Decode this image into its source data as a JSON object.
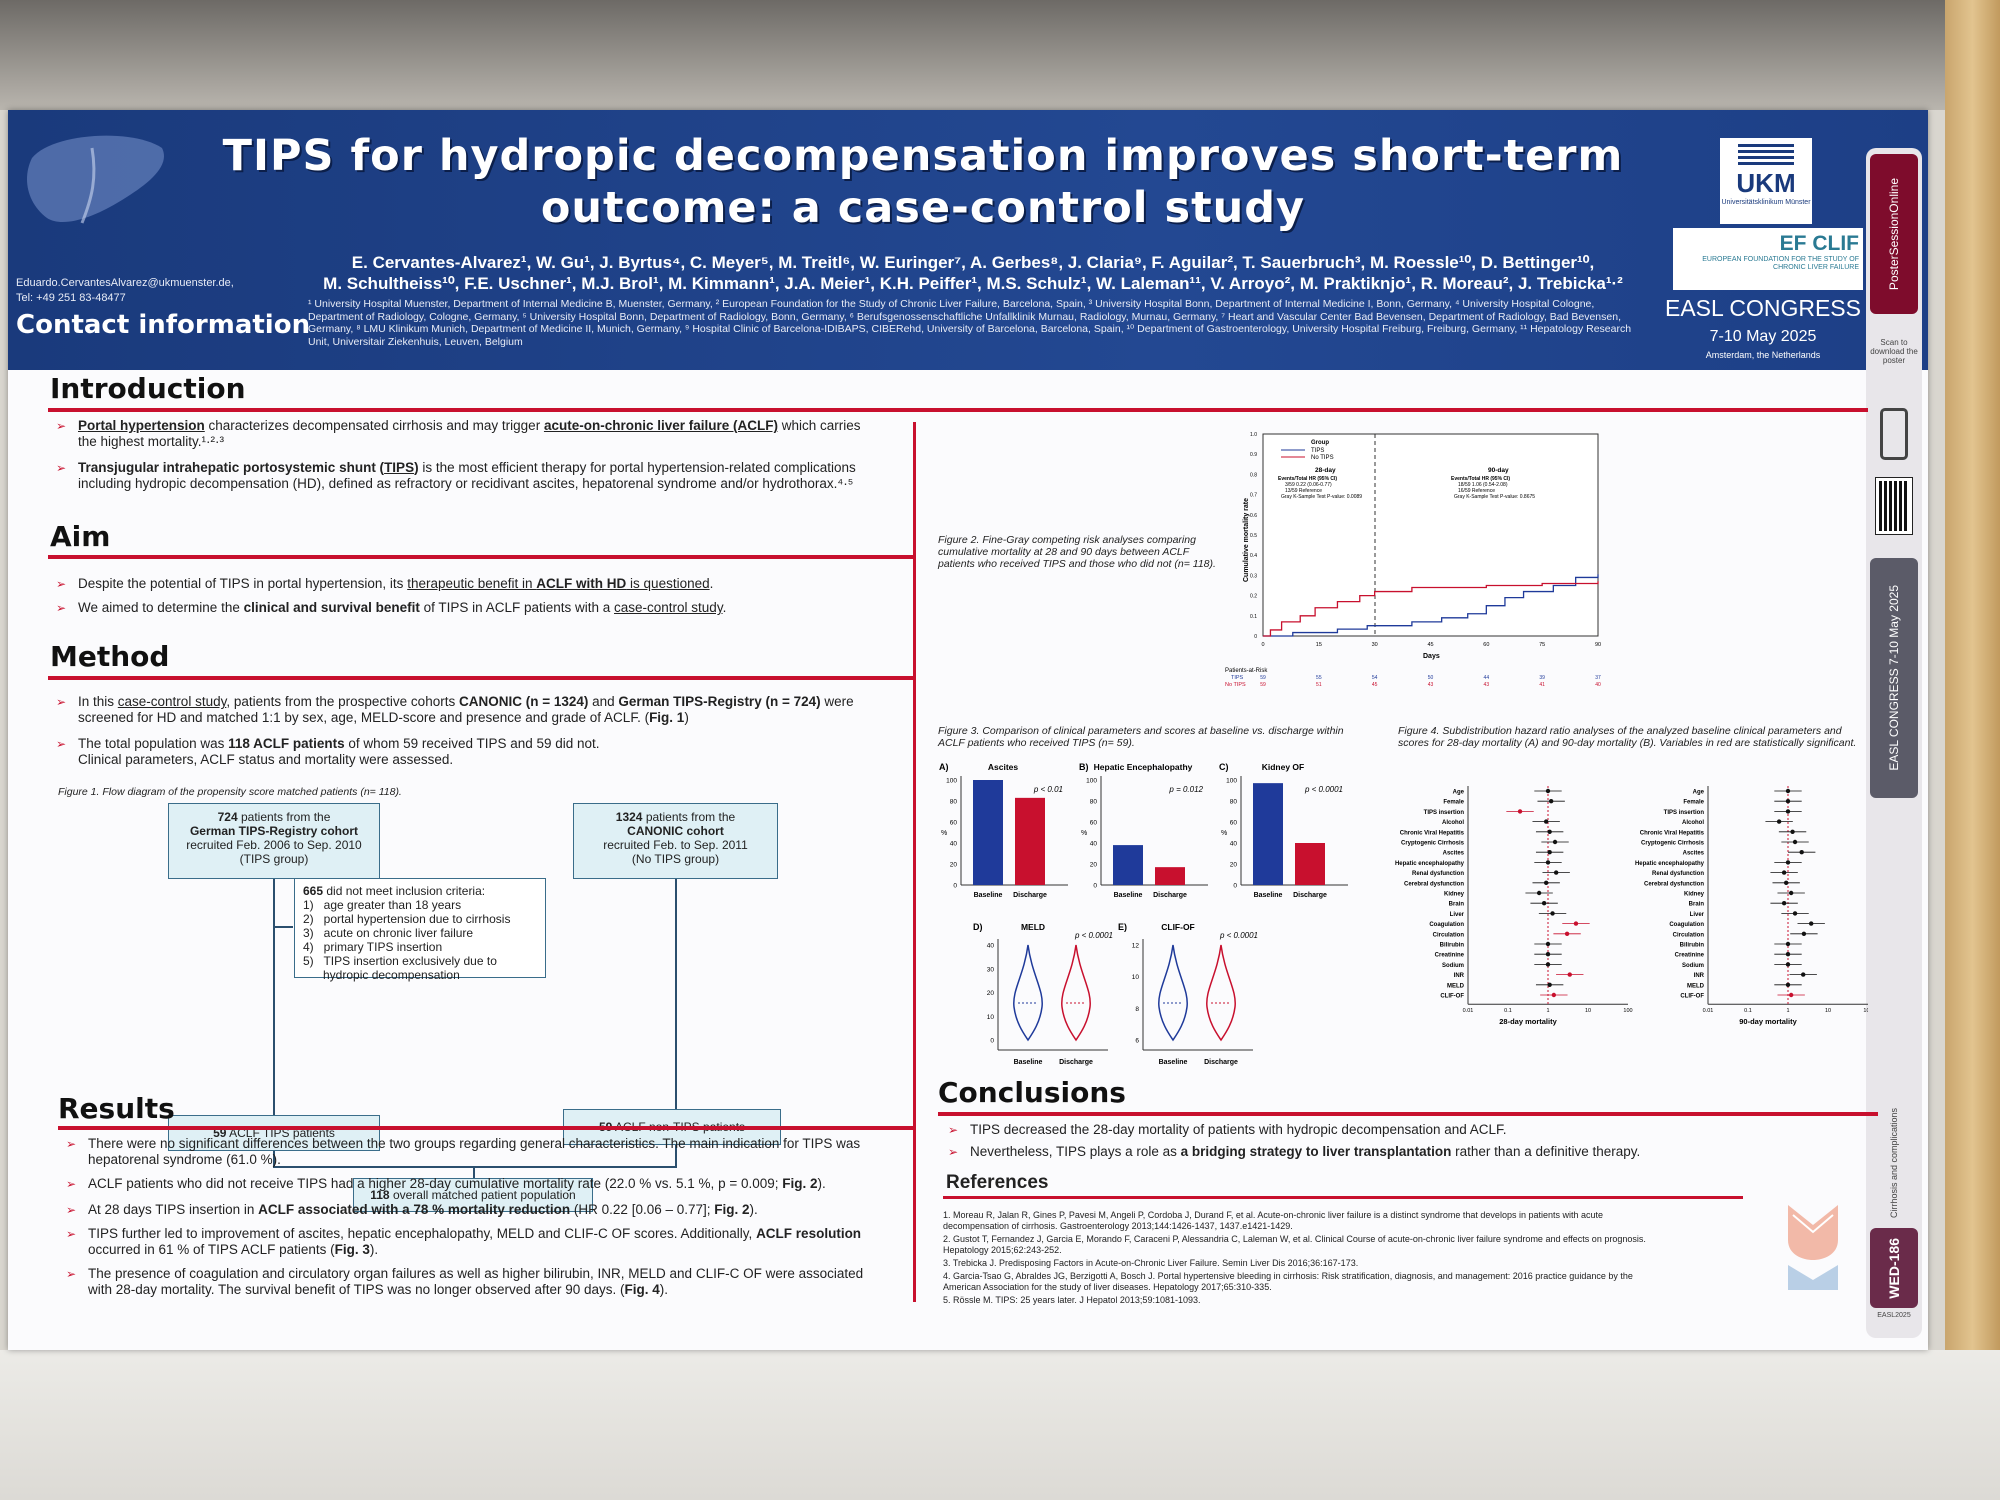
{
  "header": {
    "title_line1": "TIPS for hydropic decompensation improves short-term",
    "title_line2": "outcome: a case-control study",
    "authors_line1": "E. Cervantes-Alvarez¹, W. Gu¹, J. Byrtus⁴, C. Meyer⁵, M. Treitl⁶, W. Euringer⁷, A. Gerbes⁸, J. Claria⁹, F. Aguilar², T. Sauerbruch³, M. Roessle¹⁰, D. Bettinger¹⁰,",
    "authors_line2": "M. Schultheiss¹⁰, F.E. Uschner¹, M.J. Brol¹, M. Kimmann¹, J.A. Meier¹, K.H. Peiffer¹, M.S. Schulz¹, W. Laleman¹¹, V. Arroyo², M. Praktiknjo¹, R. Moreau², J. Trebicka¹·²",
    "affiliations": "¹ University Hospital Muenster, Department of Internal Medicine B, Muenster, Germany, ² European Foundation for the Study of Chronic Liver Failure, Barcelona, Spain, ³ University Hospital Bonn, Department of Internal Medicine I, Bonn, Germany, ⁴ University Hospital Cologne, Department of Radiology, Cologne, Germany, ⁵ University Hospital Bonn, Department of Radiology, Bonn, Germany, ⁶ Berufsgenossenschaftliche Unfallklinik Murnau, Radiology, Murnau, Germany, ⁷ Heart and Vascular Center Bad Bevensen, Department of Radiology, Bad Bevensen, Germany, ⁸ LMU Klinikum Munich, Department of Medicine II, Munich, Germany, ⁹ Hospital Clinic of Barcelona-IDIBAPS, CIBERehd, University of Barcelona, Barcelona, Spain, ¹⁰ Department of Gastroenterology, University Hospital Freiburg, Freiburg, Germany, ¹¹ Hepatology Research Unit, Universitair Ziekenhuis, Leuven, Belgium",
    "contact_email": "Eduardo.CervantesAlvarez@ukmuenster.de,",
    "contact_tel": "Tel: +49 251 83-48477",
    "contact_heading": "Contact information",
    "ukm_name": "UKM",
    "ukm_sub": "Universitätsklinikum Münster",
    "efclif_name": "EF CLIF",
    "efclif_sub": "EUROPEAN FOUNDATION FOR THE STUDY OF CHRONIC LIVER FAILURE",
    "easl_congress": "EASL CONGRESS",
    "easl_dates": "7-10 May 2025",
    "easl_location": "Amsterdam, the Netherlands"
  },
  "sidebar": {
    "poster_session": "PosterSessionOnline",
    "scan_text": "Scan to download the poster",
    "easl_vertical": "EASL CONGRESS 7-10 May 2025",
    "category": "Cirrhosis and complications",
    "code": "WED-186",
    "easl_short": "EASL2025"
  },
  "intro": {
    "heading": "Introduction",
    "b1_u": "Portal hypertension",
    "b1_mid": " characterizes decompensated cirrhosis and may trigger ",
    "b1_u2": "acute-on-chronic liver failure (ACLF)",
    "b1_end": " which carries the highest mortality.¹·²·³",
    "b2_bold": "Transjugular intrahepatic portosystemic shunt (",
    "b2_u": "TIPS",
    "b2_bold2": ")",
    "b2_end": " is the most efficient therapy for portal hypertension-related complications including hydropic decompensation (HD), defined as refractory or recidivant ascites, hepatorenal syndrome and/or hydrothorax.⁴·⁵"
  },
  "aim": {
    "heading": "Aim",
    "b1_a": "Despite the potential of TIPS in portal hypertension, its ",
    "b1_u": "therapeutic benefit in ",
    "b1_ub": "ACLF with HD",
    "b1_u3": " is questioned",
    "b1_end": ".",
    "b2_a": "We aimed to determine the ",
    "b2_b": "clinical and survival benefit",
    "b2_c": " of TIPS in ACLF patients with a ",
    "b2_u": "case-control study",
    "b2_end": "."
  },
  "method": {
    "heading": "Method",
    "b1_a": "In this ",
    "b1_u": "case-control study",
    "b1_b": ", patients from the prospective cohorts ",
    "b1_c": "CANONIC (n = 1324)",
    "b1_d": " and ",
    "b1_e": "German TIPS-Registry (n = 724)",
    "b1_f": " were screened for HD and matched 1:1 by sex, age, MELD-score and presence and grade of ACLF. (",
    "b1_g": "Fig. 1",
    "b1_h": ")",
    "b2_a": "The total population was ",
    "b2_b": "118 ACLF patients",
    "b2_c": " of whom 59 received TIPS and 59 did not.",
    "b2_d": "Clinical parameters, ACLF status and mortality were assessed."
  },
  "fig1": {
    "caption": "Figure 1. Flow diagram of the propensity score matched patients (n= 118).",
    "box_tips_n": "724",
    "box_tips_rest": " patients from the",
    "box_tips_b": "German TIPS-Registry cohort",
    "box_tips_c": "recruited Feb. 2006 to Sep. 2010",
    "box_tips_d": "(TIPS group)",
    "box_canonic_n": "1324",
    "box_canonic_rest": " patients from the",
    "box_canonic_b": "CANONIC cohort",
    "box_canonic_c": "recruited Feb. to Sep. 2011",
    "box_canonic_d": "(No TIPS group)",
    "excl_n": "665",
    "excl_rest": " did not meet inclusion criteria:",
    "excl_items": [
      "1)   age greater than 18 years",
      "2)   portal hypertension due to cirrhosis",
      "3)   acute on chronic liver failure",
      "4)   primary TIPS insertion",
      "5)   TIPS insertion exclusively due to",
      "      hydropic decompensation"
    ],
    "tips_n": "59",
    "tips_rest": " ACLF TIPS patients",
    "nontips_n": "59",
    "nontips_rest": " ACLF non-TIPS patients",
    "overall_n": "118",
    "overall_rest": " overall matched patient population"
  },
  "results": {
    "heading": "Results",
    "b1": "There were no significant differences between the two groups regarding general characteristics. The main indication for TIPS was hepatorenal syndrome (61.0 %).",
    "b2_a": "ACLF patients who did not receive TIPS had a higher 28-day cumulative mortality rate (22.0 % vs. 5.1 %, p = 0.009; ",
    "b2_b": "Fig. 2",
    "b2_c": ").",
    "b3_a": "At 28 days TIPS insertion in ",
    "b3_b": "ACLF associated with a 78 % mortality reduction",
    "b3_c": " (HR 0.22 [0.06 – 0.77]; ",
    "b3_d": "Fig. 2",
    "b3_e": ").",
    "b4_a": "TIPS further led to improvement of ascites, hepatic encephalopathy, MELD and CLIF-C OF scores. Additionally, ",
    "b4_b": "ACLF resolution",
    "b4_c": " occurred in 61 % of TIPS ACLF patients (",
    "b4_d": "Fig. 3",
    "b4_e": ").",
    "b5_a": "The presence of coagulation and circulatory organ failures as well as higher bilirubin, INR, MELD and CLIF-C OF were associated with 28-day mortality. The survival benefit of TIPS was no longer observed after 90 days. (",
    "b5_b": "Fig. 4",
    "b5_c": ")."
  },
  "fig2": {
    "caption": "Figure 2. Fine-Gray competing risk analyses comparing cumulative mortality at 28 and 90 days between ACLF patients who received TIPS and those who did not (n= 118).",
    "legend_title": "Group",
    "legend_tips": "TIPS",
    "legend_notips": "No TIPS",
    "d28_title": "28-day",
    "d28_head": "Events/Total     HR (95% CI)",
    "d28_row1": "3/59          0.22 (0.06-0.77)",
    "d28_row2": "13/59              Reference",
    "d28_p": "Gray K-Sample Test P-value: 0.0089",
    "d90_title": "90-day",
    "d90_head": "Events/Total     HR (95% CI)",
    "d90_row1": "18/59          1.06 (0.54-2.08)",
    "d90_row2": "16/59              Reference",
    "d90_p": "Gray K-Sample Test P-value: 0.8675",
    "ylabel": "Cumulative mortality rate",
    "xlabel": "Days",
    "risk_title": "Patients-at-Risk",
    "risk_tips_label": "TIPS",
    "risk_notips_label": "No TIPS",
    "risk_tips": [
      "59",
      "55",
      "54",
      "50",
      "44",
      "39",
      "37"
    ],
    "risk_notips": [
      "59",
      "51",
      "45",
      "43",
      "43",
      "41",
      "40"
    ]
  },
  "fig3": {
    "caption": "Figure 3. Comparison of clinical parameters and scores at baseline vs. discharge within ACLF patients who received TIPS (n= 59).",
    "ascites": {
      "letter": "A)",
      "title": "Ascites",
      "p": "p < 0.01",
      "values": [
        100,
        83
      ]
    },
    "he": {
      "letter": "B)",
      "title": "Hepatic Encephalopathy",
      "p": "p = 0.012",
      "values": [
        38,
        17
      ]
    },
    "kidney": {
      "letter": "C)",
      "title": "Kidney OF",
      "p": "p < 0.0001",
      "values": [
        97,
        40
      ]
    },
    "meld": {
      "letter": "D)",
      "title": "MELD",
      "p": "p < 0.0001"
    },
    "clifof": {
      "letter": "E)",
      "title": "CLIF-OF",
      "p": "p < 0.0001"
    },
    "pct": "%",
    "baseline": "Baseline",
    "discharge": "Discharge"
  },
  "fig4": {
    "caption": "Figure 4. Subdistribution hazard ratio analyses of the analyzed baseline clinical parameters and scores for 28-day mortality (A) and 90-day mortality (B). Variables in red are statistically significant.",
    "labels": [
      "Age",
      "Female",
      "TIPS insertion",
      "Alcohol",
      "Chronic Viral Hepatitis",
      "Cryptogenic Cirrhosis",
      "Ascites",
      "Hepatic encephalopathy",
      "Renal dysfunction",
      "Cerebral dysfunction",
      "Kidney",
      "Brain",
      "Liver",
      "Coagulation",
      "Circulation",
      "Bilirubin",
      "Creatinine",
      "Sodium",
      "INR",
      "MELD",
      "CLIF-OF"
    ],
    "red28": [
      2,
      13,
      14,
      18,
      20
    ],
    "red90": [
      20
    ],
    "xlabel28": "28-day mortality",
    "xlabel90": "90-day mortality",
    "ticks": [
      "0.01",
      "0.1",
      "1",
      "10",
      "100"
    ]
  },
  "conclusions": {
    "heading": "Conclusions",
    "b1": "TIPS decreased the 28-day mortality of patients with hydropic decompensation and ACLF.",
    "b2_a": "Nevertheless, TIPS plays a role as ",
    "b2_b": "a bridging strategy to liver transplantation",
    "b2_c": " rather than a definitive therapy."
  },
  "references": {
    "heading": "References",
    "items": [
      "1.    Moreau R, Jalan R, Gines P, Pavesi M, Angeli P, Cordoba J, Durand F, et al. Acute-on-chronic liver failure is a distinct syndrome that develops in patients with acute decompensation of cirrhosis. Gastroenterology 2013;144:1426-1437, 1437.e1421-1429.",
      "2.    Gustot T, Fernandez J, Garcia E, Morando F, Caraceni P, Alessandria C, Laleman W, et al. Clinical Course of acute-on-chronic liver failure syndrome and effects on prognosis. Hepatology 2015;62:243-252.",
      "3.    Trebicka J. Predisposing Factors in Acute-on-Chronic Liver Failure. Semin Liver Dis 2016;36:167-173.",
      "4.    Garcia-Tsao G, Abraldes JG, Berzigotti A, Bosch J. Portal hypertensive bleeding in cirrhosis: Risk stratification, diagnosis, and management: 2016 practice guidance by the American Association for the study of liver diseases. Hepatology 2017;65:310-335.",
      "5.    Rössle M. TIPS: 25 years later. J Hepatol 2013;59:1081-1093."
    ]
  },
  "colors": {
    "navy": "#1a3a7c",
    "red": "#c8102e",
    "tips_blue": "#1f3a9a",
    "notips_red": "#c8102e"
  }
}
